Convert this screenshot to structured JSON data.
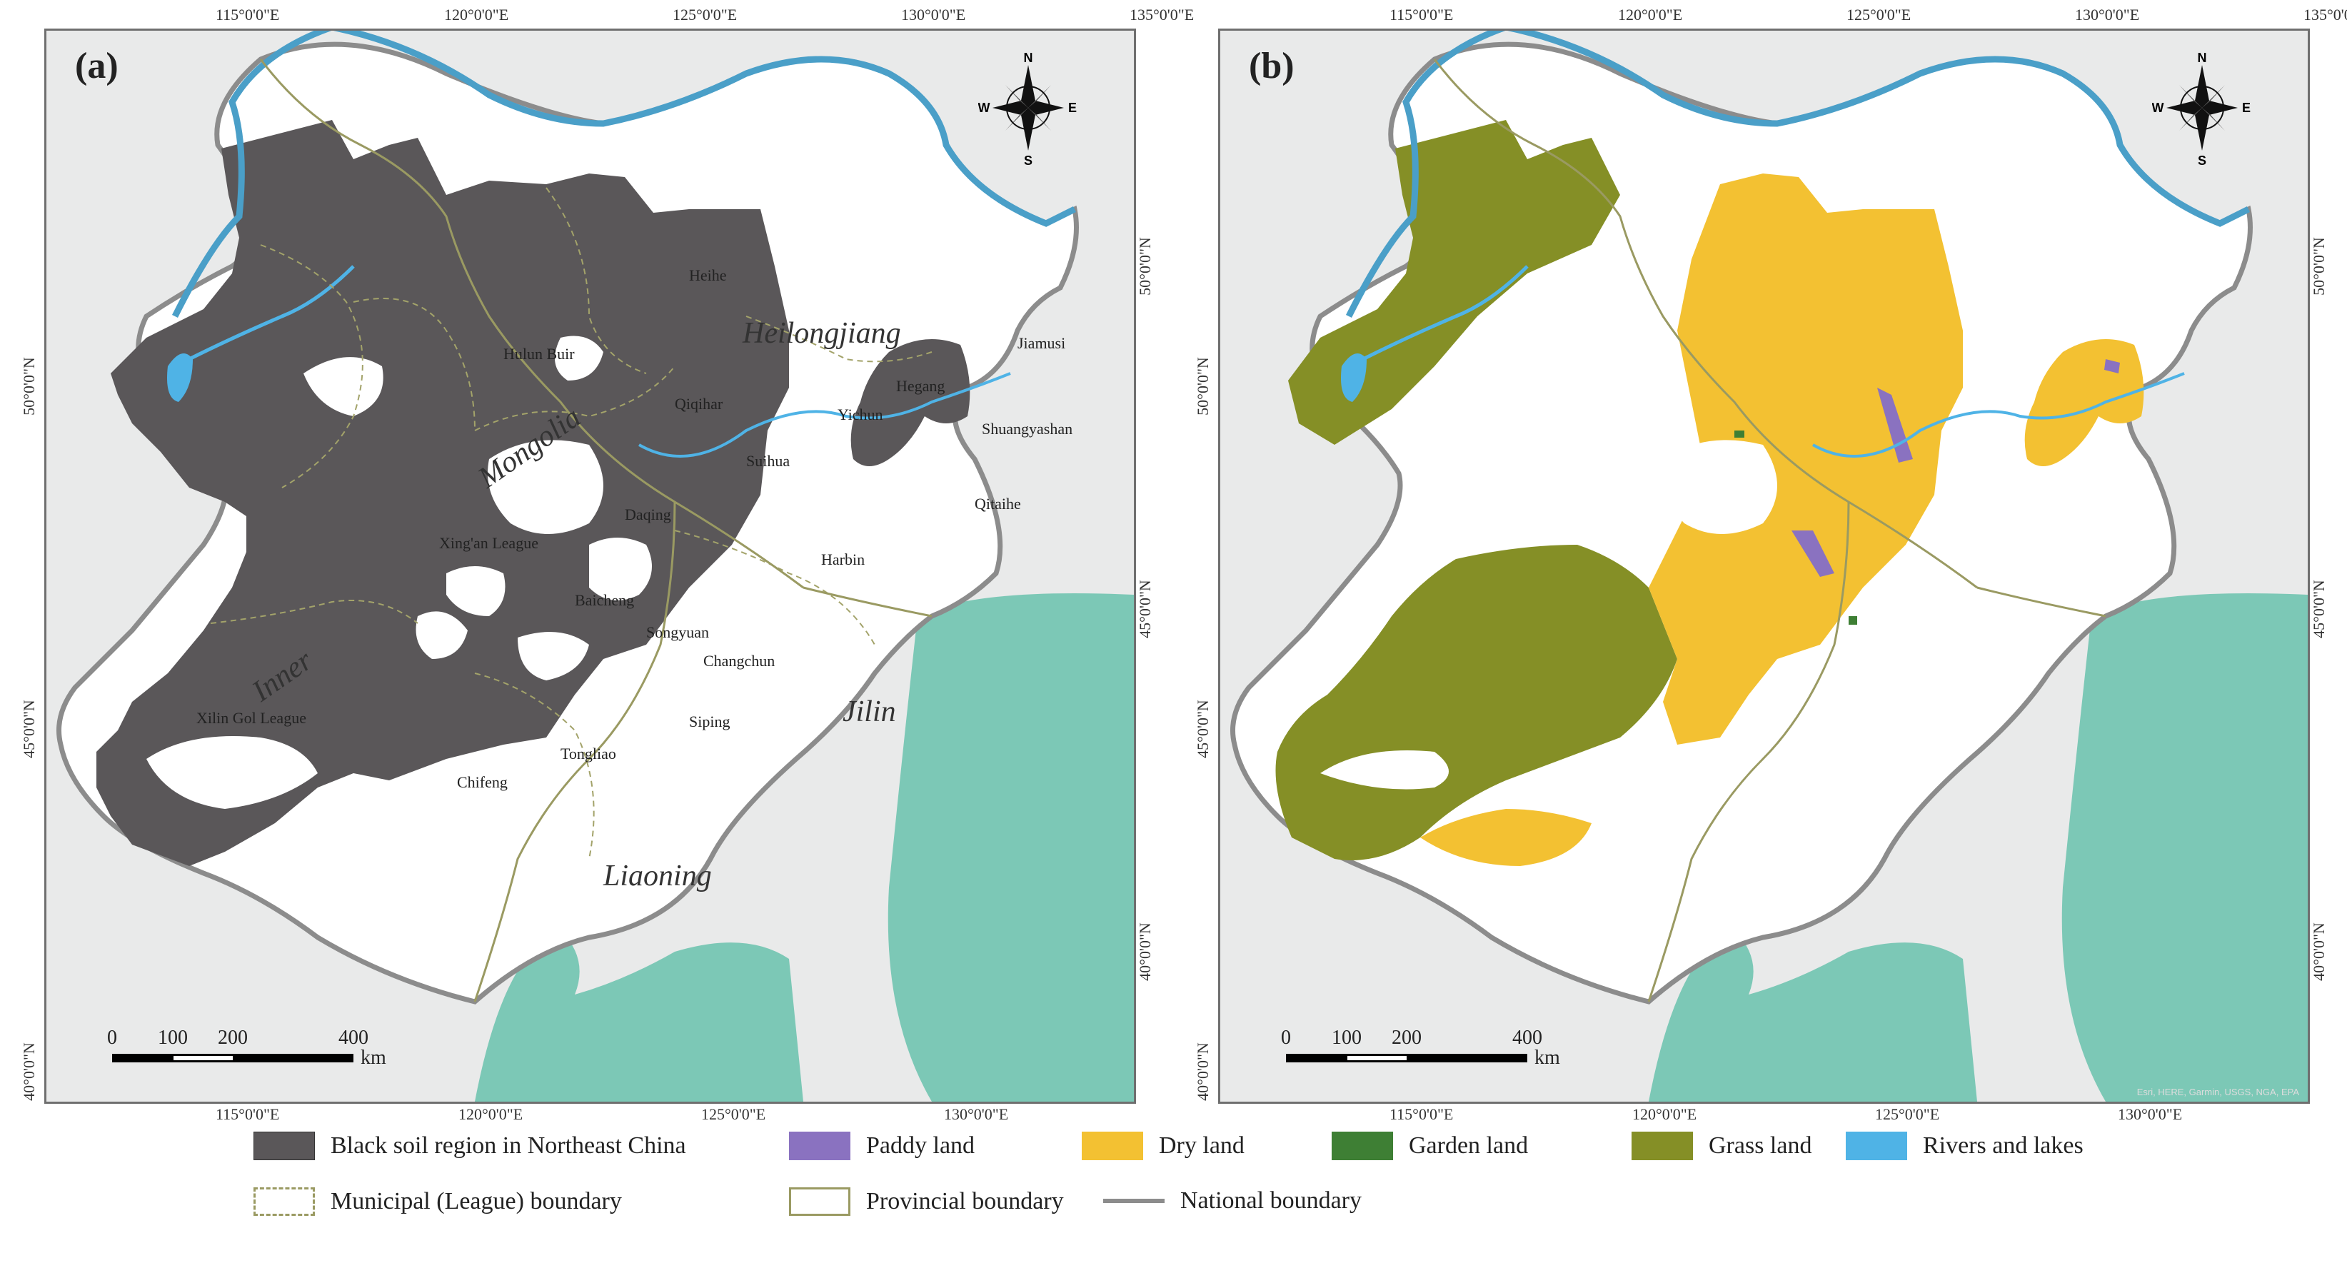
{
  "panels": [
    {
      "label": "(a)"
    },
    {
      "label": "(b)"
    }
  ],
  "ticks": {
    "top": [
      "115°0'0\"E",
      "120°0'0\"E",
      "125°0'0\"E",
      "130°0'0\"E",
      "135°0'0\"E"
    ],
    "bottom": [
      "115°0'0\"E",
      "120°0'0\"E",
      "125°0'0\"E",
      "130°0'0\"E"
    ],
    "left": [
      "50°0'0\"N",
      "45°0'0\"N",
      "40°0'0\"N"
    ],
    "right": [
      "50°0'0\"N",
      "45°0'0\"N",
      "40°0'0\"N"
    ]
  },
  "compass": {
    "n": "N",
    "s": "S",
    "e": "E",
    "w": "W"
  },
  "scale_bar": {
    "labels": [
      "0",
      "100",
      "200",
      "400"
    ],
    "unit": "km"
  },
  "place_names": {
    "heihe": "Heihe",
    "hulun_buir": "Hulun Buir",
    "qiqihar": "Qiqihar",
    "suihua": "Suihua",
    "yichun": "Yichun",
    "hegang": "Hegang",
    "jiamusi": "Jiamusi",
    "shuangyashan": "Shuangyashan",
    "qitaihe": "Qitaihe",
    "daqing": "Daqing",
    "xingan_league": "Xing'an League",
    "harbin": "Harbin",
    "baicheng": "Baicheng",
    "songyuan": "Songyuan",
    "changchun": "Changchun",
    "xilin_gol_league": "Xilin Gol League",
    "siping": "Siping",
    "tongliao": "Tongliao",
    "chifeng": "Chifeng"
  },
  "province_names": {
    "heilongjiang": "Heilongjiang",
    "mongolia": "Mongolia",
    "inner": "Inner",
    "jilin": "Jilin",
    "liaoning": "Liaoning"
  },
  "attribution": "Esri, HERE, Garmin, USGS, NGA, EPA",
  "legend": {
    "black_soil": {
      "label": "Black soil region in Northeast China",
      "color": "#5a5759"
    },
    "paddy": {
      "label": "Paddy land",
      "color": "#8a72c0"
    },
    "dry": {
      "label": "Dry land",
      "color": "#f3c132"
    },
    "garden": {
      "label": "Garden land",
      "color": "#3e7f34"
    },
    "grass": {
      "label": "Grass land",
      "color": "#858f26"
    },
    "rivers": {
      "label": "Rivers and lakes",
      "color": "#4fb3e6"
    },
    "municipal": {
      "label": "Municipal (League) boundary",
      "color": "#9a9a62"
    },
    "provincial": {
      "label": "Provincial boundary",
      "color": "#9a9a62"
    },
    "national": {
      "label": "National boundary",
      "color": "#8c8c8c"
    }
  },
  "colors": {
    "background": "#e9eaea",
    "sea": "#7cc8b6",
    "study_area": "#ffffff",
    "national_boundary": "#8c8c8c",
    "river_boundary": "#4a9fc8"
  }
}
